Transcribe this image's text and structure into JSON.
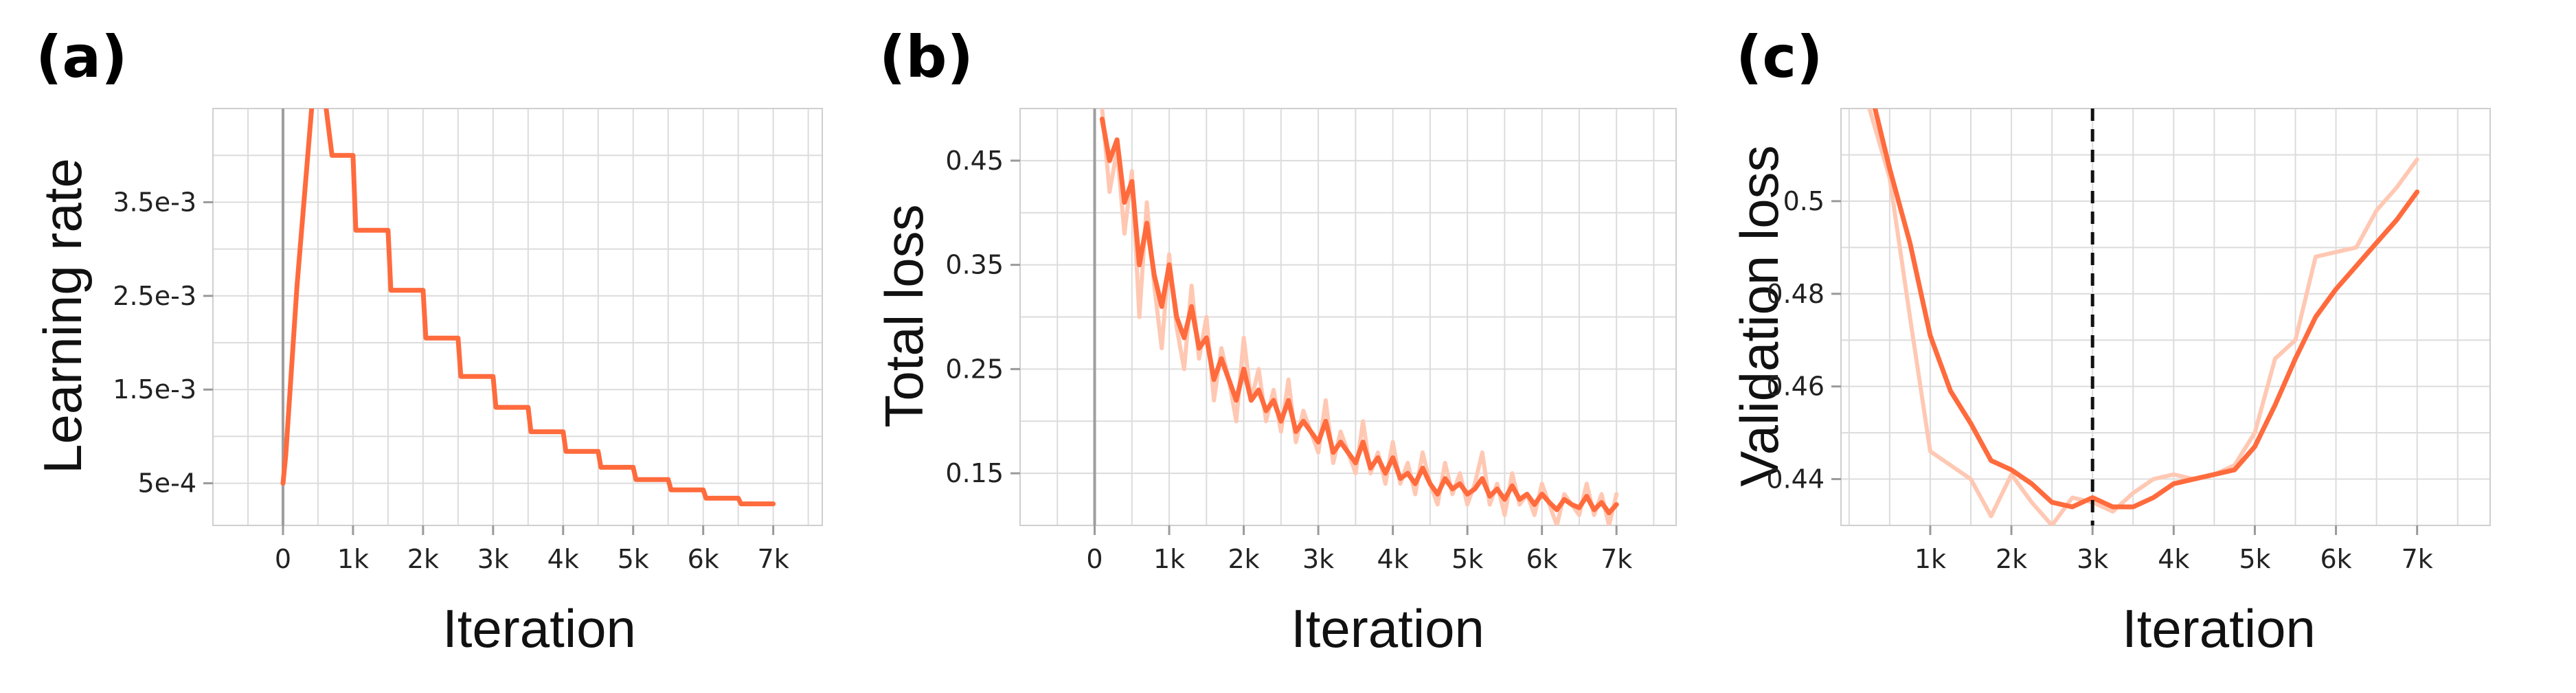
{
  "colors": {
    "primary": "#ff6b3d",
    "raw": "#ffc8b3"
  },
  "chart_data": [
    {
      "panel_label": "(a)",
      "type": "line",
      "xlabel": "Iteration",
      "ylabel": "Learning rate",
      "xlim": [
        -1000,
        7700
      ],
      "ylim": [
        5e-05,
        0.0045
      ],
      "grid": true,
      "xticks": [
        0,
        1000,
        2000,
        3000,
        4000,
        5000,
        6000,
        7000
      ],
      "xtick_labels": [
        "0",
        "1k",
        "2k",
        "3k",
        "4k",
        "5k",
        "6k",
        "7k"
      ],
      "yticks": [
        0.0005,
        0.0015,
        0.0025,
        0.0035
      ],
      "ytick_labels": [
        "5e-4",
        "1.5e-3",
        "2.5e-3",
        "3.5e-3"
      ],
      "zero_line": 0,
      "series": [
        {
          "style": "smooth",
          "x": [
            0,
            40,
            200,
            420,
            520,
            600,
            700,
            1000,
            1040,
            1500,
            1540,
            2000,
            2040,
            2500,
            2540,
            3000,
            3040,
            3500,
            3540,
            4000,
            4040,
            4500,
            4540,
            5000,
            5040,
            5500,
            5540,
            6000,
            6040,
            6500,
            6540,
            7000
          ],
          "y": [
            0.0005,
            0.0008,
            0.0026,
            0.0046,
            0.0046,
            0.0046,
            0.004,
            0.004,
            0.0032,
            0.0032,
            0.00256,
            0.00256,
            0.00205,
            0.00205,
            0.00164,
            0.00164,
            0.00131,
            0.00131,
            0.00105,
            0.00105,
            0.00084,
            0.00084,
            0.00067,
            0.00067,
            0.00054,
            0.00054,
            0.00043,
            0.00043,
            0.00034,
            0.00034,
            0.00028,
            0.00028
          ]
        }
      ]
    },
    {
      "panel_label": "(b)",
      "type": "line",
      "xlabel": "Iteration",
      "ylabel": "Total loss",
      "xlim": [
        -1000,
        7800
      ],
      "ylim": [
        0.1,
        0.5
      ],
      "grid": true,
      "xticks": [
        0,
        1000,
        2000,
        3000,
        4000,
        5000,
        6000,
        7000
      ],
      "xtick_labels": [
        "0",
        "1k",
        "2k",
        "3k",
        "4k",
        "5k",
        "6k",
        "7k"
      ],
      "yticks": [
        0.15,
        0.25,
        0.35,
        0.45
      ],
      "ytick_labels": [
        "0.15",
        "0.25",
        "0.35",
        "0.45"
      ],
      "zero_line": 0,
      "series": [
        {
          "style": "raw",
          "x": [
            100,
            200,
            300,
            400,
            500,
            600,
            700,
            800,
            900,
            1000,
            1100,
            1200,
            1300,
            1400,
            1500,
            1600,
            1700,
            1800,
            1900,
            2000,
            2100,
            2200,
            2300,
            2400,
            2500,
            2600,
            2700,
            2800,
            2900,
            3000,
            3100,
            3200,
            3300,
            3400,
            3500,
            3600,
            3700,
            3800,
            3900,
            4000,
            4100,
            4200,
            4300,
            4400,
            4500,
            4600,
            4700,
            4800,
            4900,
            5000,
            5100,
            5200,
            5300,
            5400,
            5500,
            5600,
            5700,
            5800,
            5900,
            6000,
            6100,
            6200,
            6300,
            6400,
            6500,
            6600,
            6700,
            6800,
            6900,
            7000
          ],
          "y": [
            0.5,
            0.42,
            0.46,
            0.38,
            0.44,
            0.3,
            0.41,
            0.33,
            0.27,
            0.36,
            0.29,
            0.25,
            0.33,
            0.26,
            0.3,
            0.22,
            0.27,
            0.24,
            0.2,
            0.28,
            0.22,
            0.25,
            0.2,
            0.23,
            0.19,
            0.24,
            0.18,
            0.21,
            0.19,
            0.17,
            0.22,
            0.16,
            0.19,
            0.17,
            0.15,
            0.2,
            0.15,
            0.17,
            0.14,
            0.18,
            0.14,
            0.16,
            0.13,
            0.17,
            0.14,
            0.12,
            0.16,
            0.13,
            0.15,
            0.12,
            0.14,
            0.17,
            0.12,
            0.14,
            0.11,
            0.15,
            0.12,
            0.13,
            0.11,
            0.14,
            0.12,
            0.1,
            0.13,
            0.12,
            0.11,
            0.14,
            0.11,
            0.13,
            0.1,
            0.13
          ]
        },
        {
          "style": "smooth",
          "x": [
            100,
            200,
            300,
            400,
            500,
            600,
            700,
            800,
            900,
            1000,
            1100,
            1200,
            1300,
            1400,
            1500,
            1600,
            1700,
            1800,
            1900,
            2000,
            2100,
            2200,
            2300,
            2400,
            2500,
            2600,
            2700,
            2800,
            2900,
            3000,
            3100,
            3200,
            3300,
            3400,
            3500,
            3600,
            3700,
            3800,
            3900,
            4000,
            4100,
            4200,
            4300,
            4400,
            4500,
            4600,
            4700,
            4800,
            4900,
            5000,
            5100,
            5200,
            5300,
            5400,
            5500,
            5600,
            5700,
            5800,
            5900,
            6000,
            6100,
            6200,
            6300,
            6400,
            6500,
            6600,
            6700,
            6800,
            6900,
            7000
          ],
          "y": [
            0.49,
            0.45,
            0.47,
            0.41,
            0.43,
            0.35,
            0.39,
            0.34,
            0.31,
            0.35,
            0.3,
            0.28,
            0.31,
            0.27,
            0.28,
            0.24,
            0.26,
            0.24,
            0.22,
            0.25,
            0.22,
            0.23,
            0.21,
            0.22,
            0.2,
            0.22,
            0.19,
            0.2,
            0.19,
            0.18,
            0.2,
            0.17,
            0.18,
            0.17,
            0.16,
            0.18,
            0.155,
            0.165,
            0.15,
            0.165,
            0.145,
            0.15,
            0.14,
            0.155,
            0.14,
            0.13,
            0.145,
            0.135,
            0.14,
            0.13,
            0.135,
            0.145,
            0.128,
            0.135,
            0.125,
            0.138,
            0.125,
            0.13,
            0.12,
            0.13,
            0.122,
            0.115,
            0.125,
            0.12,
            0.117,
            0.128,
            0.115,
            0.122,
            0.112,
            0.12
          ]
        }
      ]
    },
    {
      "panel_label": "(c)",
      "type": "line",
      "xlabel": "Iteration",
      "ylabel": "Validation loss",
      "xlim": [
        -100,
        7900
      ],
      "ylim": [
        0.43,
        0.52
      ],
      "grid": true,
      "xticks": [
        1000,
        2000,
        3000,
        4000,
        5000,
        6000,
        7000
      ],
      "xtick_labels": [
        "1k",
        "2k",
        "3k",
        "4k",
        "5k",
        "6k",
        "7k"
      ],
      "yticks": [
        0.44,
        0.46,
        0.48,
        0.5
      ],
      "ytick_labels": [
        "0.44",
        "0.46",
        "0.48",
        "0.5"
      ],
      "vline": 3000,
      "series": [
        {
          "style": "raw",
          "x": [
            250,
            500,
            750,
            1000,
            1250,
            1500,
            1750,
            2000,
            2250,
            2500,
            2750,
            3000,
            3250,
            3500,
            3750,
            4000,
            4250,
            4500,
            4750,
            5000,
            5250,
            5500,
            5750,
            6000,
            6250,
            6500,
            6750,
            7000
          ],
          "y": [
            0.52,
            0.505,
            0.475,
            0.446,
            0.443,
            0.44,
            0.432,
            0.441,
            0.435,
            0.43,
            0.436,
            0.435,
            0.433,
            0.437,
            0.44,
            0.441,
            0.44,
            0.441,
            0.443,
            0.45,
            0.466,
            0.47,
            0.488,
            0.489,
            0.49,
            0.498,
            0.503,
            0.509
          ]
        },
        {
          "style": "smooth",
          "x": [
            250,
            500,
            750,
            1000,
            1250,
            1500,
            1750,
            2000,
            2250,
            2500,
            2750,
            3000,
            3250,
            3500,
            3750,
            4000,
            4250,
            4500,
            4750,
            5000,
            5250,
            5500,
            5750,
            6000,
            6250,
            6500,
            6750,
            7000
          ],
          "y": [
            0.525,
            0.507,
            0.491,
            0.471,
            0.459,
            0.452,
            0.444,
            0.442,
            0.439,
            0.435,
            0.434,
            0.436,
            0.434,
            0.434,
            0.436,
            0.439,
            0.44,
            0.441,
            0.442,
            0.447,
            0.456,
            0.466,
            0.475,
            0.481,
            0.486,
            0.491,
            0.496,
            0.502
          ]
        }
      ]
    }
  ]
}
